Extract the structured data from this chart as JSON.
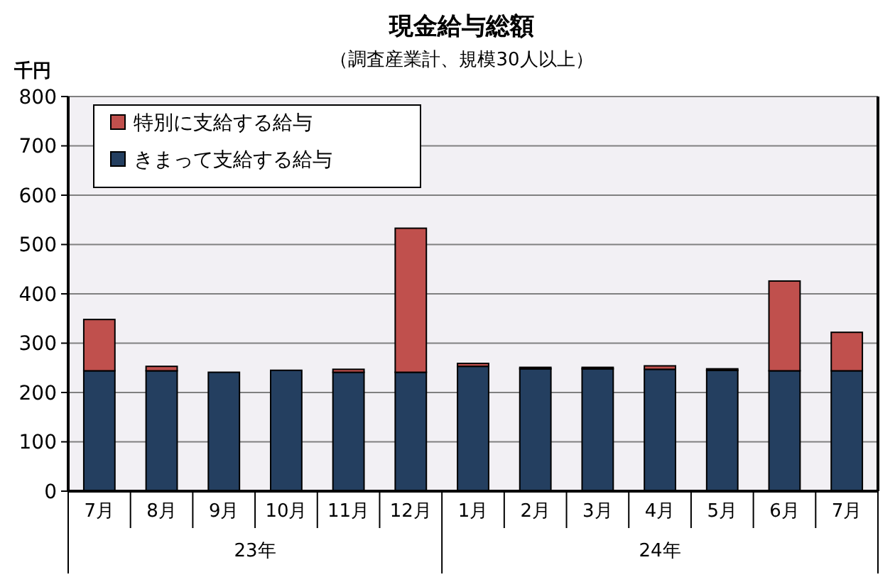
{
  "chart_data": {
    "type": "bar",
    "title": "現金給与総額",
    "subtitle": "（調査産業計、規模30人以上）",
    "ylabel": "千円",
    "categories": [
      "7月",
      "8月",
      "9月",
      "10月",
      "11月",
      "12月",
      "1月",
      "2月",
      "3月",
      "4月",
      "5月",
      "6月",
      "7月"
    ],
    "stacked": true,
    "series": [
      {
        "name": "きまって支給する給与",
        "color": "#243f60",
        "values": [
          244,
          244,
          241,
          245,
          241,
          241,
          253,
          248,
          248,
          247,
          245,
          244,
          244
        ]
      },
      {
        "name": "特別に支給する給与",
        "color": "#c0504d",
        "values": [
          104,
          9,
          null,
          null,
          6,
          292,
          6,
          3,
          3,
          7,
          3,
          182,
          78
        ]
      }
    ],
    "ylim": [
      0,
      800
    ],
    "yticks": [
      0,
      100,
      200,
      300,
      400,
      500,
      600,
      700,
      800
    ],
    "grid": "y",
    "legend": "top left",
    "annotations": [
      "23年",
      "24年"
    ]
  }
}
